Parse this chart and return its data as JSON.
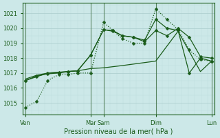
{
  "bg_color": "#cce8e8",
  "grid_color_major": "#aacccc",
  "grid_color_minor": "#bbdddd",
  "line_color": "#1a5c1a",
  "vline_color": "#336633",
  "title": "Pression niveau de la mer( hPa )",
  "yticks": [
    1015,
    1016,
    1017,
    1018,
    1019,
    1020,
    1021
  ],
  "ylim": [
    1014.2,
    1021.7
  ],
  "xlim": [
    -0.15,
    10.15
  ],
  "xtick_labels_pos": [
    0,
    3.5,
    4.2,
    7.0,
    10.0
  ],
  "xtick_labels_text": [
    "Ven",
    "Mar",
    "Sam",
    "Dim",
    "Lun"
  ],
  "vlines_x": [
    0,
    3.5,
    4.2,
    7.0,
    10.0
  ],
  "line1_x": [
    0,
    0.6,
    1.2,
    1.8,
    2.3,
    2.8,
    3.5,
    4.2,
    4.7,
    5.2,
    5.8,
    6.4,
    7.0,
    7.6,
    8.2,
    8.8,
    9.4,
    10.0
  ],
  "line1_y": [
    1014.7,
    1015.1,
    1016.5,
    1016.9,
    1016.9,
    1017.0,
    1017.0,
    1020.4,
    1019.85,
    1019.3,
    1019.0,
    1019.0,
    1021.3,
    1020.6,
    1019.9,
    1018.55,
    1017.9,
    1017.8
  ],
  "line2_x": [
    0,
    0.6,
    1.2,
    1.8,
    2.3,
    2.8,
    3.5,
    4.2,
    4.7,
    5.2,
    5.8,
    6.4,
    7.0,
    7.6,
    8.2,
    8.8,
    9.4,
    10.0
  ],
  "line2_y": [
    1016.5,
    1016.8,
    1016.95,
    1017.0,
    1017.1,
    1017.15,
    1018.2,
    1019.9,
    1019.8,
    1019.5,
    1019.4,
    1019.2,
    1020.6,
    1020.0,
    1019.85,
    1017.0,
    1018.0,
    1017.8
  ],
  "line3_x": [
    0,
    0.6,
    1.2,
    1.8,
    2.3,
    2.8,
    3.5,
    4.2,
    5.2,
    6.4,
    7.0,
    8.2,
    9.4,
    10.0
  ],
  "line3_y": [
    1016.6,
    1016.85,
    1017.0,
    1017.05,
    1017.1,
    1017.15,
    1017.3,
    1017.35,
    1017.5,
    1017.7,
    1017.8,
    1019.8,
    1017.1,
    1017.8
  ],
  "line4_x": [
    0,
    0.6,
    1.2,
    1.8,
    2.3,
    2.8,
    3.5,
    4.2,
    4.7,
    5.2,
    5.8,
    6.4,
    7.0,
    7.6,
    8.2,
    8.8,
    9.4,
    10.0
  ],
  "line4_y": [
    1016.5,
    1016.75,
    1017.0,
    1017.05,
    1017.1,
    1017.15,
    1018.2,
    1019.9,
    1019.85,
    1019.5,
    1019.4,
    1019.1,
    1019.85,
    1019.5,
    1020.0,
    1019.4,
    1018.1,
    1018.0
  ]
}
